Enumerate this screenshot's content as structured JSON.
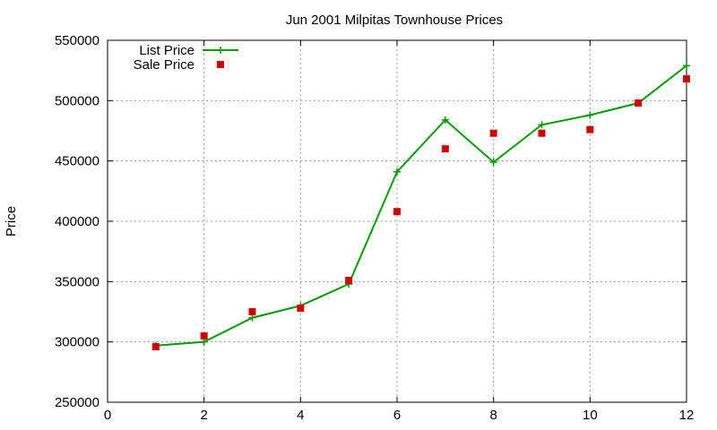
{
  "chart_data": {
    "type": "line",
    "title": "Jun 2001 Milpitas Townhouse Prices",
    "xlabel": "",
    "ylabel": "Price",
    "xlim": [
      0,
      12
    ],
    "ylim": [
      250000,
      550000
    ],
    "xticks": [
      0,
      2,
      4,
      6,
      8,
      10,
      12
    ],
    "yticks": [
      250000,
      300000,
      350000,
      400000,
      450000,
      500000,
      550000
    ],
    "grid": true,
    "legend_position": "top-left",
    "series": [
      {
        "name": "List Price",
        "style": "line-with-plus-markers",
        "color": "#009900",
        "x": [
          1,
          2,
          3,
          4,
          5,
          6,
          7,
          8,
          9,
          10,
          11,
          12
        ],
        "y": [
          297000,
          300000,
          320000,
          330000,
          348000,
          441000,
          484000,
          449000,
          480000,
          488000,
          498000,
          529000
        ]
      },
      {
        "name": "Sale Price",
        "style": "square-markers",
        "color": "#cc0000",
        "x": [
          1,
          2,
          3,
          4,
          5,
          6,
          7,
          8,
          9,
          10,
          11,
          12
        ],
        "y": [
          296000,
          305000,
          325000,
          328000,
          351000,
          408000,
          460000,
          473000,
          473000,
          476000,
          498000,
          518000
        ]
      }
    ]
  }
}
